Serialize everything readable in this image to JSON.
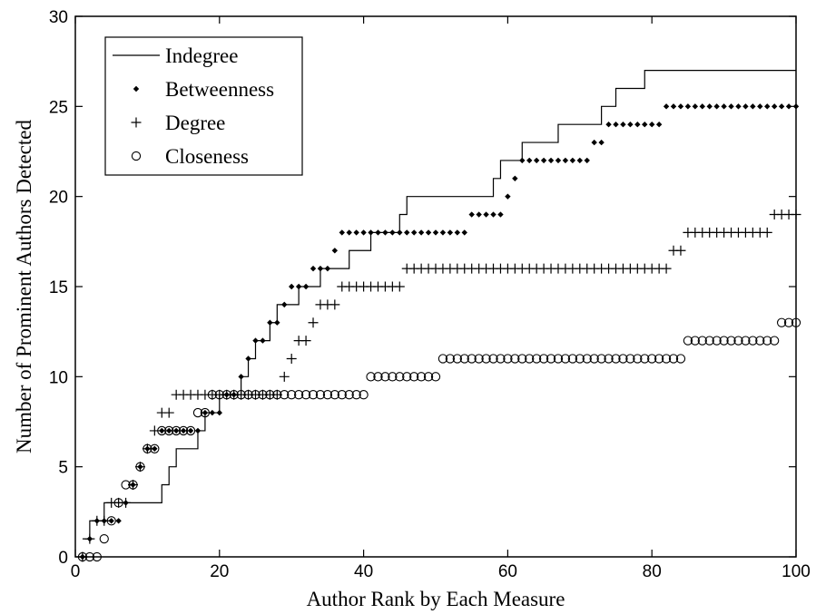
{
  "chart_data": {
    "type": "line",
    "title": "",
    "xlabel": "Author Rank by Each Measure",
    "ylabel": "Number of Prominent Authors Detected",
    "xlim": [
      0,
      100
    ],
    "ylim": [
      0,
      30
    ],
    "xticks": [
      0,
      20,
      40,
      60,
      80,
      100
    ],
    "yticks": [
      0,
      5,
      10,
      15,
      20,
      25,
      30
    ],
    "grid": false,
    "legend_position": "top-left",
    "series": [
      {
        "name": "Indegree",
        "style": "step-line",
        "color": "#000000",
        "y": [
          1,
          2,
          2,
          3,
          3,
          3,
          3,
          3,
          3,
          3,
          3,
          4,
          5,
          6,
          6,
          6,
          7,
          8,
          8,
          9,
          9,
          9,
          10,
          11,
          12,
          12,
          13,
          14,
          14,
          14,
          15,
          15,
          15,
          16,
          16,
          16,
          16,
          17,
          17,
          17,
          18,
          18,
          18,
          18,
          19,
          20,
          20,
          20,
          20,
          20,
          20,
          20,
          20,
          20,
          20,
          20,
          20,
          21,
          22,
          22,
          22,
          23,
          23,
          23,
          23,
          23,
          24,
          24,
          24,
          24,
          24,
          24,
          25,
          25,
          26,
          26,
          26,
          26,
          27,
          27,
          27,
          27,
          27,
          27,
          27,
          27,
          27,
          27,
          27,
          27,
          27,
          27,
          27,
          27,
          27,
          27,
          27,
          27,
          27,
          27
        ]
      },
      {
        "name": "Betweenness",
        "style": "diamond-marker",
        "color": "#000000",
        "y": [
          0,
          1,
          2,
          2,
          2,
          2,
          3,
          4,
          5,
          6,
          6,
          7,
          7,
          7,
          7,
          7,
          7,
          8,
          8,
          8,
          9,
          9,
          10,
          11,
          12,
          12,
          13,
          13,
          14,
          15,
          15,
          15,
          16,
          16,
          16,
          17,
          18,
          18,
          18,
          18,
          18,
          18,
          18,
          18,
          18,
          18,
          18,
          18,
          18,
          18,
          18,
          18,
          18,
          18,
          19,
          19,
          19,
          19,
          19,
          20,
          21,
          22,
          22,
          22,
          22,
          22,
          22,
          22,
          22,
          22,
          22,
          23,
          23,
          24,
          24,
          24,
          24,
          24,
          24,
          24,
          24,
          25,
          25,
          25,
          25,
          25,
          25,
          25,
          25,
          25,
          25,
          25,
          25,
          25,
          25,
          25,
          25,
          25,
          25,
          25
        ]
      },
      {
        "name": "Degree",
        "style": "plus-marker",
        "color": "#000000",
        "y": [
          0,
          1,
          2,
          2,
          3,
          3,
          3,
          4,
          5,
          6,
          7,
          8,
          8,
          9,
          9,
          9,
          9,
          9,
          9,
          9,
          9,
          9,
          9,
          9,
          9,
          9,
          9,
          9,
          10,
          11,
          12,
          12,
          13,
          14,
          14,
          14,
          15,
          15,
          15,
          15,
          15,
          15,
          15,
          15,
          15,
          16,
          16,
          16,
          16,
          16,
          16,
          16,
          16,
          16,
          16,
          16,
          16,
          16,
          16,
          16,
          16,
          16,
          16,
          16,
          16,
          16,
          16,
          16,
          16,
          16,
          16,
          16,
          16,
          16,
          16,
          16,
          16,
          16,
          16,
          16,
          16,
          16,
          17,
          17,
          18,
          18,
          18,
          18,
          18,
          18,
          18,
          18,
          18,
          18,
          18,
          18,
          19,
          19,
          19,
          19
        ]
      },
      {
        "name": "Closeness",
        "style": "circle-marker",
        "color": "#000000",
        "y": [
          0,
          0,
          0,
          1,
          2,
          3,
          4,
          4,
          5,
          6,
          6,
          7,
          7,
          7,
          7,
          7,
          8,
          8,
          9,
          9,
          9,
          9,
          9,
          9,
          9,
          9,
          9,
          9,
          9,
          9,
          9,
          9,
          9,
          9,
          9,
          9,
          9,
          9,
          9,
          9,
          10,
          10,
          10,
          10,
          10,
          10,
          10,
          10,
          10,
          10,
          11,
          11,
          11,
          11,
          11,
          11,
          11,
          11,
          11,
          11,
          11,
          11,
          11,
          11,
          11,
          11,
          11,
          11,
          11,
          11,
          11,
          11,
          11,
          11,
          11,
          11,
          11,
          11,
          11,
          11,
          11,
          11,
          11,
          11,
          12,
          12,
          12,
          12,
          12,
          12,
          12,
          12,
          12,
          12,
          12,
          12,
          12,
          13,
          13,
          13
        ]
      }
    ]
  }
}
